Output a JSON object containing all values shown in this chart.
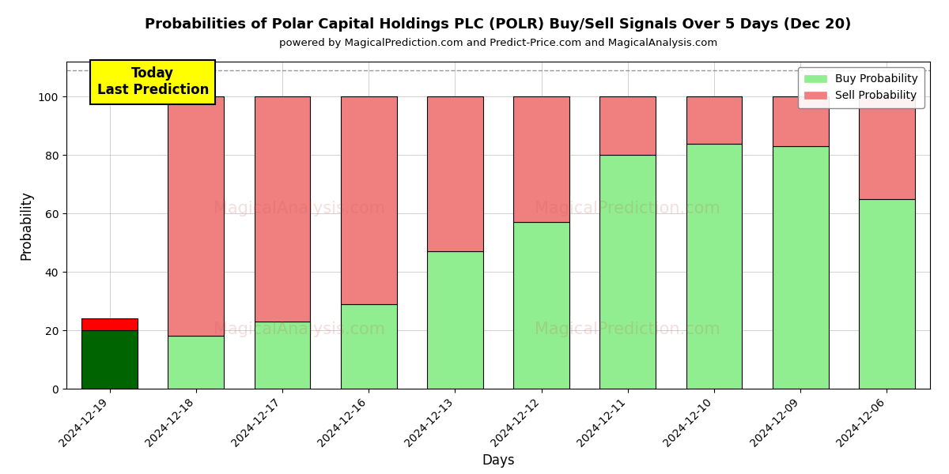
{
  "title": "Probabilities of Polar Capital Holdings PLC (POLR) Buy/Sell Signals Over 5 Days (Dec 20)",
  "subtitle": "powered by MagicalPrediction.com and Predict-Price.com and MagicalAnalysis.com",
  "xlabel": "Days",
  "ylabel": "Probability",
  "categories": [
    "2024-12-19",
    "2024-12-18",
    "2024-12-17",
    "2024-12-16",
    "2024-12-13",
    "2024-12-12",
    "2024-12-11",
    "2024-12-10",
    "2024-12-09",
    "2024-12-06"
  ],
  "buy_values": [
    20,
    18,
    23,
    29,
    47,
    57,
    80,
    84,
    83,
    65
  ],
  "sell_values": [
    4,
    82,
    77,
    71,
    53,
    43,
    20,
    16,
    17,
    35
  ],
  "today_buy_color": "#006400",
  "today_sell_color": "#FF0000",
  "buy_color": "#90EE90",
  "sell_color": "#F08080",
  "today_label": "Today\nLast Prediction",
  "today_label_bg": "#FFFF00",
  "legend_buy": "Buy Probability",
  "legend_sell": "Sell Probability",
  "ylim": [
    0,
    112
  ],
  "dashed_line_y": 109,
  "figsize": [
    12,
    6
  ],
  "dpi": 100
}
